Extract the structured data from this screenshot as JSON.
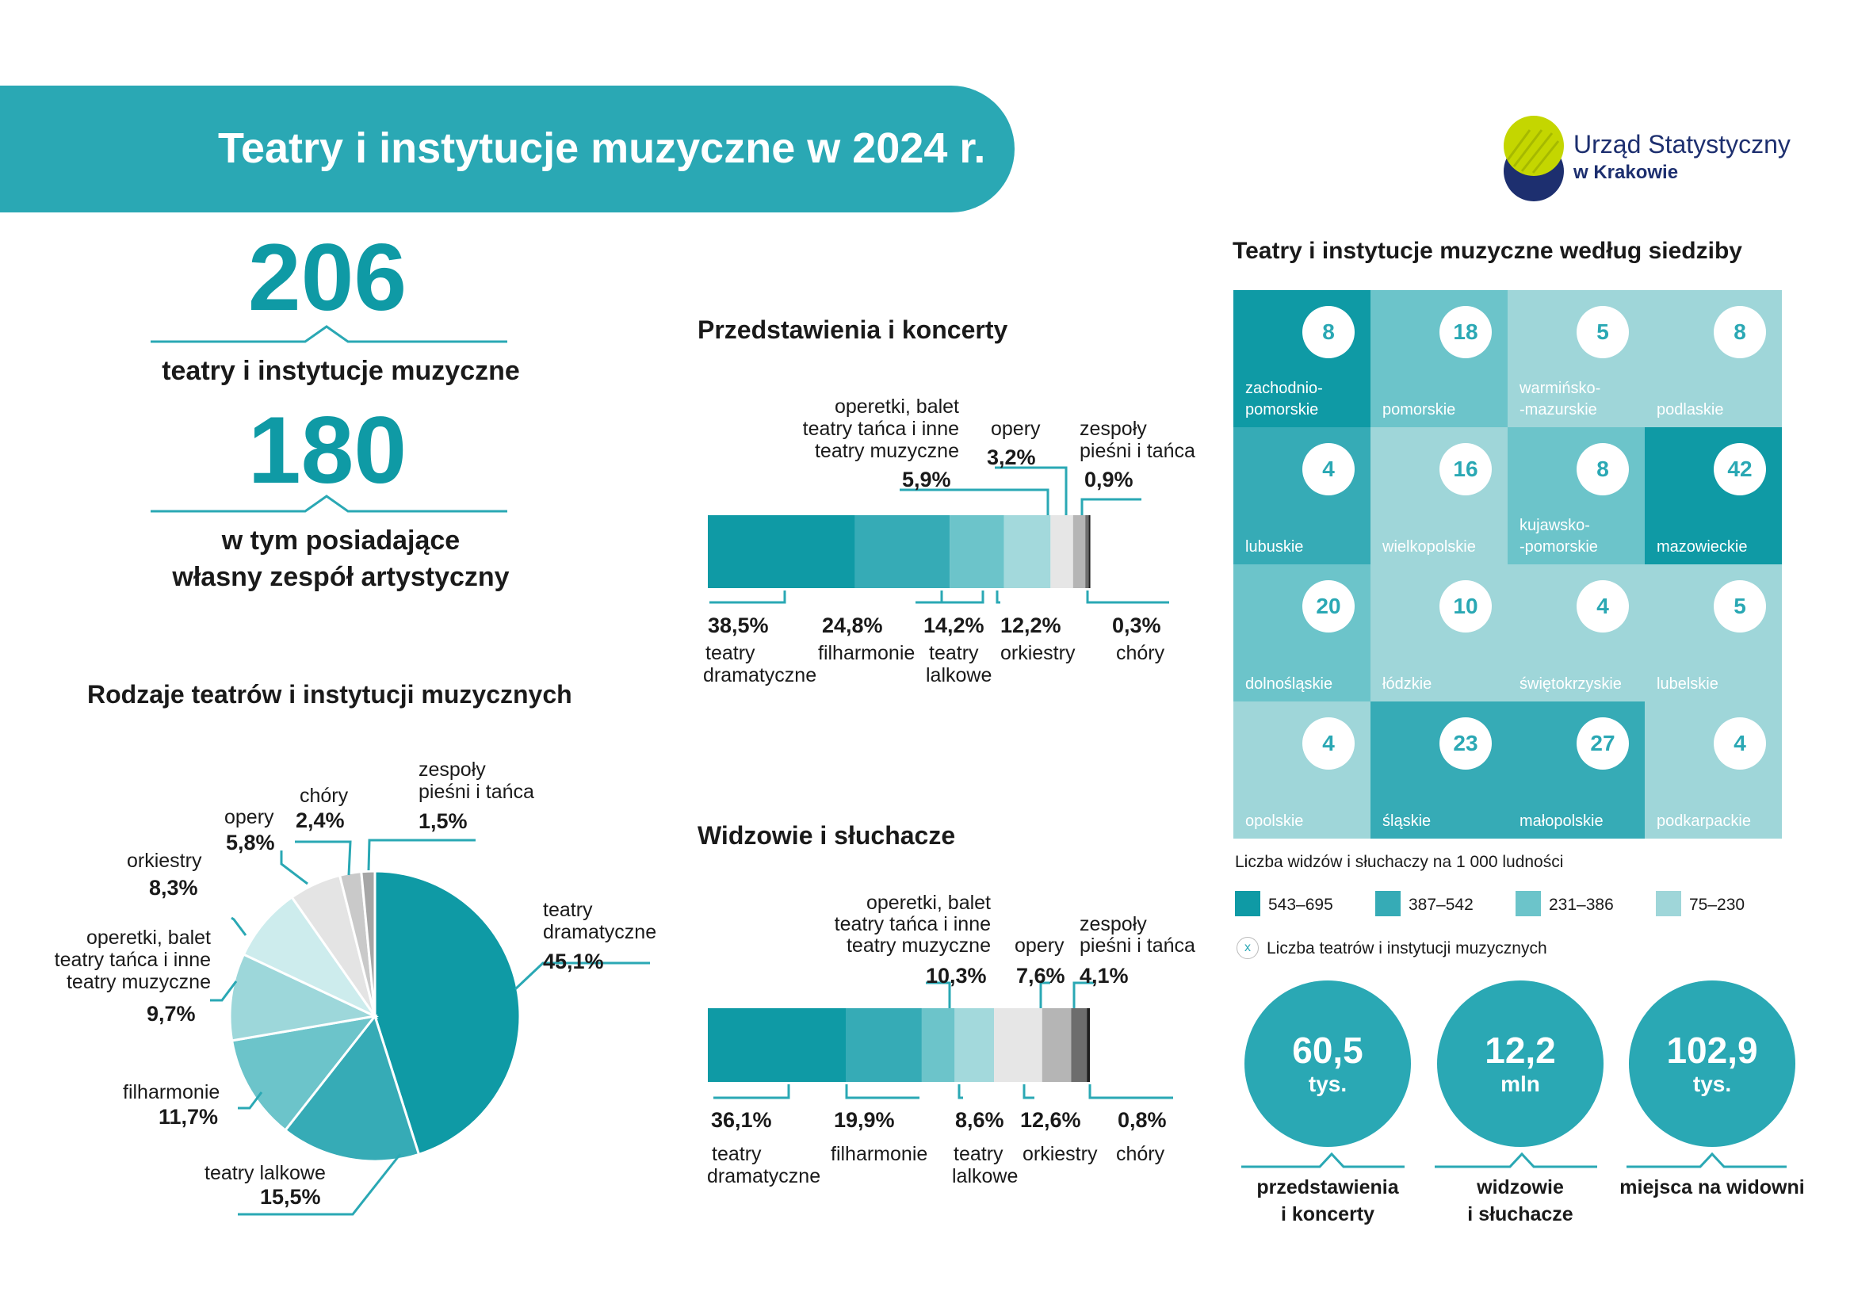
{
  "header": {
    "title": "Teatry i instytucje muzyczne w 2024 r."
  },
  "logo": {
    "name": "Urząd Statystyczny",
    "sub": "w Krakowie",
    "colors": [
      "#c4d600",
      "#1d2f6f"
    ]
  },
  "summary": {
    "total_value": "206",
    "total_label": "teatry i instytucje muzyczne",
    "own_value": "180",
    "own_label_1": "w tym posiadające",
    "own_label_2": "własny zespół artystyczny"
  },
  "colors": {
    "primary": "#0f9aa5",
    "accent": "#2aa8b4"
  },
  "chart_data": [
    {
      "type": "pie",
      "title": "Rodzaje teatrów i instytucji muzycznych",
      "slices": [
        {
          "label": "teatry dramatyczne",
          "value": 45.1,
          "value_label": "45,1%",
          "color": "#0f9aa5"
        },
        {
          "label": "teatry lalkowe",
          "value": 15.5,
          "value_label": "15,5%",
          "color": "#36abb6"
        },
        {
          "label": "filharmonie",
          "value": 11.7,
          "value_label": "11,7%",
          "color": "#6cc4ca"
        },
        {
          "label": "operetki, balet teatry tańca i inne teatry muzyczne",
          "value": 9.7,
          "value_label": "9,7%",
          "color": "#9dd7da"
        },
        {
          "label": "orkiestry",
          "value": 8.3,
          "value_label": "8,3%",
          "color": "#cdeced"
        },
        {
          "label": "opery",
          "value": 5.8,
          "value_label": "5,8%",
          "color": "#e4e4e4"
        },
        {
          "label": "chóry",
          "value": 2.4,
          "value_label": "2,4%",
          "color": "#c9c9c9"
        },
        {
          "label": "zespoły pieśni i tańca",
          "value": 1.5,
          "value_label": "1,5%",
          "color": "#a6a6a6"
        }
      ]
    },
    {
      "type": "bar",
      "orientation": "stacked-horizontal",
      "title": "Przedstawienia i koncerty",
      "segments": [
        {
          "label": "teatry dramatyczne",
          "value": 38.5,
          "value_label": "38,5%",
          "color": "#0f9aa5"
        },
        {
          "label": "filharmonie",
          "value": 24.8,
          "value_label": "24,8%",
          "color": "#36abb6"
        },
        {
          "label": "teatry lalkowe",
          "value": 14.2,
          "value_label": "14,2%",
          "color": "#6cc4ca"
        },
        {
          "label": "orkiestry",
          "value": 12.2,
          "value_label": "12,2%",
          "color": "#a3d9dc"
        },
        {
          "label": "operetki, balet teatry tańca i inne teatry muzyczne",
          "value": 5.9,
          "value_label": "5,9%",
          "color": "#e6e6e6"
        },
        {
          "label": "opery",
          "value": 3.2,
          "value_label": "3,2%",
          "color": "#b5b5b5"
        },
        {
          "label": "zespoły pieśni i tańca",
          "value": 0.9,
          "value_label": "0,9%",
          "color": "#6d6d6d"
        },
        {
          "label": "chóry",
          "value": 0.3,
          "value_label": "0,3%",
          "color": "#1f1f1f"
        }
      ]
    },
    {
      "type": "bar",
      "orientation": "stacked-horizontal",
      "title": "Widzowie i słuchacze",
      "segments": [
        {
          "label": "teatry dramatyczne",
          "value": 36.1,
          "value_label": "36,1%",
          "color": "#0f9aa5"
        },
        {
          "label": "filharmonie",
          "value": 19.9,
          "value_label": "19,9%",
          "color": "#36abb6"
        },
        {
          "label": "teatry lalkowe",
          "value": 8.6,
          "value_label": "8,6%",
          "color": "#6cc4ca"
        },
        {
          "label": "orkiestry",
          "value": 10.3,
          "value_label": "10,3%",
          "color": "#a3d9dc"
        },
        {
          "label": "operetki, balet teatry tańca i inne teatry muzyczne",
          "value": 12.6,
          "value_label": "12,6%",
          "color": "#e6e6e6"
        },
        {
          "label": "opery",
          "value": 7.6,
          "value_label": "7,6%",
          "color": "#b5b5b5"
        },
        {
          "label": "zespoły pieśni i tańca",
          "value": 4.1,
          "value_label": "4,1%",
          "color": "#6d6d6d"
        },
        {
          "label": "chóry",
          "value": 0.8,
          "value_label": "0,8%",
          "color": "#1f1f1f"
        }
      ]
    },
    {
      "type": "heatmap",
      "title": "Teatry i instytucje muzyczne według siedziby",
      "legend_title": "Liczba widzów i słuchaczy na 1 000 ludności",
      "legend_count_symbol": "x",
      "legend_count_text": "Liczba teatrów i instytucji muzycznych",
      "classes": [
        {
          "label": "543–695",
          "color": "#0f9aa5"
        },
        {
          "label": "387–542",
          "color": "#36abb6"
        },
        {
          "label": "231–386",
          "color": "#6cc4ca"
        },
        {
          "label": "75–230",
          "color": "#9fd6d9"
        }
      ],
      "cells": [
        {
          "name_1": "zachodnio-",
          "name_2": "pomorskie",
          "count": "8",
          "class": 0
        },
        {
          "name_1": "",
          "name_2": "pomorskie",
          "count": "18",
          "class": 2
        },
        {
          "name_1": "warmińsko-",
          "name_2": "-mazurskie",
          "count": "5",
          "class": 3
        },
        {
          "name_1": "",
          "name_2": "podlaskie",
          "count": "8",
          "class": 3
        },
        {
          "name_1": "",
          "name_2": "lubuskie",
          "count": "4",
          "class": 1
        },
        {
          "name_1": "",
          "name_2": "wielkopolskie",
          "count": "16",
          "class": 3
        },
        {
          "name_1": "kujawsko-",
          "name_2": "-pomorskie",
          "count": "8",
          "class": 2
        },
        {
          "name_1": "",
          "name_2": "mazowieckie",
          "count": "42",
          "class": 0
        },
        {
          "name_1": "",
          "name_2": "dolnośląskie",
          "count": "20",
          "class": 2
        },
        {
          "name_1": "",
          "name_2": "łódzkie",
          "count": "10",
          "class": 3
        },
        {
          "name_1": "",
          "name_2": "świętokrzyskie",
          "count": "4",
          "class": 3
        },
        {
          "name_1": "",
          "name_2": "lubelskie",
          "count": "5",
          "class": 3
        },
        {
          "name_1": "",
          "name_2": "opolskie",
          "count": "4",
          "class": 3
        },
        {
          "name_1": "",
          "name_2": "śląskie",
          "count": "23",
          "class": 1
        },
        {
          "name_1": "",
          "name_2": "małopolskie",
          "count": "27",
          "class": 1
        },
        {
          "name_1": "",
          "name_2": "podkarpackie",
          "count": "4",
          "class": 3
        }
      ]
    }
  ],
  "pie_labels": {
    "teatry_dram_1": "teatry",
    "teatry_dram_2": "dramatyczne",
    "lalkowe": "teatry lalkowe",
    "filharmonie": "filharmonie",
    "operetki_1": "operetki, balet",
    "operetki_2": "teatry tańca i inne",
    "operetki_3": "teatry muzyczne",
    "orkiestry": "orkiestry",
    "opery": "opery",
    "chory": "chóry",
    "zespoly_1": "zespoły",
    "zespoly_2": "pieśni i tańca"
  },
  "bar_labels": {
    "teatry": "teatry",
    "dramatyczne": "dramatyczne",
    "filharmonie": "filharmonie",
    "lalkowe": "lalkowe",
    "orkiestry": "orkiestry",
    "chory": "chóry",
    "operetki_1": "operetki, balet",
    "operetki_2": "teatry tańca i inne",
    "operetki_3": "teatry muzyczne",
    "opery": "opery",
    "zespoly_1": "zespoły",
    "zespoly_2": "pieśni i tańca"
  },
  "bubbles": [
    {
      "value": "60,5",
      "unit": "tys.",
      "caption_1": "przedstawienia",
      "caption_2": "i koncerty"
    },
    {
      "value": "12,2",
      "unit": "mln",
      "caption_1": "widzowie",
      "caption_2": "i słuchacze"
    },
    {
      "value": "102,9",
      "unit": "tys.",
      "caption_1": "miejsca na widowni",
      "caption_2": ""
    }
  ]
}
